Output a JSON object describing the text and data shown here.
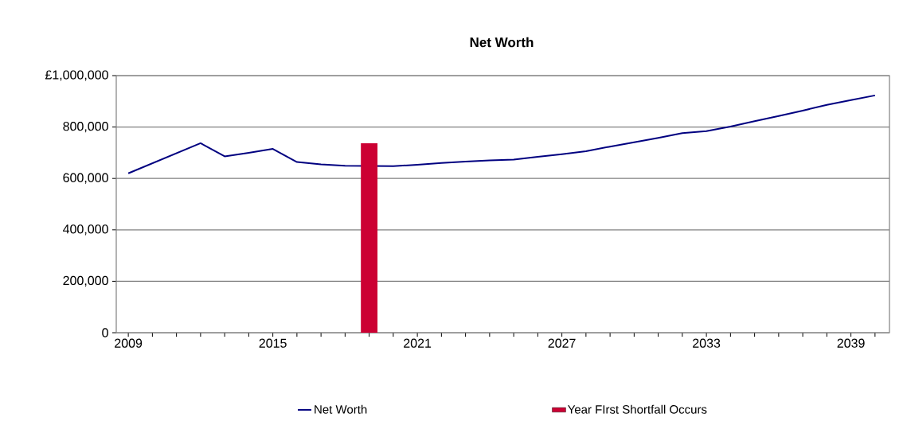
{
  "chart_data": {
    "type": "line",
    "title": "Net Worth",
    "xlim": [
      2008.5,
      2040.6
    ],
    "ylim": [
      0,
      1000000
    ],
    "xticks": [
      2009,
      {
        "value": 2010,
        "label": null
      },
      {
        "value": 2011,
        "label": null
      },
      {
        "value": 2012,
        "label": null
      },
      {
        "value": 2013,
        "label": null
      },
      {
        "value": 2014,
        "label": null
      },
      2015,
      {
        "value": 2016,
        "label": null
      },
      {
        "value": 2017,
        "label": null
      },
      {
        "value": 2018,
        "label": null
      },
      {
        "value": 2019,
        "label": null
      },
      {
        "value": 2020,
        "label": null
      },
      2021,
      {
        "value": 2022,
        "label": null
      },
      {
        "value": 2023,
        "label": null
      },
      {
        "value": 2024,
        "label": null
      },
      {
        "value": 2025,
        "label": null
      },
      {
        "value": 2026,
        "label": null
      },
      2027,
      {
        "value": 2028,
        "label": null
      },
      {
        "value": 2029,
        "label": null
      },
      {
        "value": 2030,
        "label": null
      },
      {
        "value": 2031,
        "label": null
      },
      {
        "value": 2032,
        "label": null
      },
      2033,
      {
        "value": 2034,
        "label": null
      },
      {
        "value": 2035,
        "label": null
      },
      {
        "value": 2036,
        "label": null
      },
      {
        "value": 2037,
        "label": null
      },
      {
        "value": 2038,
        "label": null
      },
      2039,
      {
        "value": 2040,
        "label": null
      }
    ],
    "yticks": [
      {
        "value": 0,
        "label": "0"
      },
      {
        "value": 200000,
        "label": "200,000"
      },
      {
        "value": 400000,
        "label": "400,000"
      },
      {
        "value": 600000,
        "label": "600,000"
      },
      {
        "value": 800000,
        "label": "800,000"
      },
      {
        "value": 1000000,
        "label": "£1,000,000"
      }
    ],
    "grid": "y",
    "legend": "bottom",
    "marker": "none",
    "line_style": "solid",
    "series": [
      {
        "name": "Net Worth",
        "color": "#000080",
        "x": [
          2009,
          2010,
          2011,
          2012,
          2013,
          2014,
          2015,
          2016,
          2017,
          2018,
          2019,
          2020,
          2021,
          2022,
          2023,
          2024,
          2025,
          2026,
          2027,
          2028,
          2029,
          2030,
          2031,
          2032,
          2033,
          2034,
          2035,
          2036,
          2037,
          2038,
          2039,
          2040
        ],
        "values": [
          620000,
          659000,
          698000,
          737000,
          686000,
          700000,
          715000,
          664000,
          655000,
          649000,
          null,
          648000,
          653000,
          660000,
          666000,
          670000,
          673000,
          684000,
          694000,
          706000,
          724000,
          741000,
          758000,
          776000,
          784000,
          802000,
          823000,
          843000,
          864000,
          886000,
          905000,
          923000
        ]
      },
      {
        "name": "Year FIrst Shortfall Occurs",
        "type": "bar",
        "color": "#cc0033",
        "x": [
          2019
        ],
        "values": [
          737000
        ]
      }
    ]
  }
}
